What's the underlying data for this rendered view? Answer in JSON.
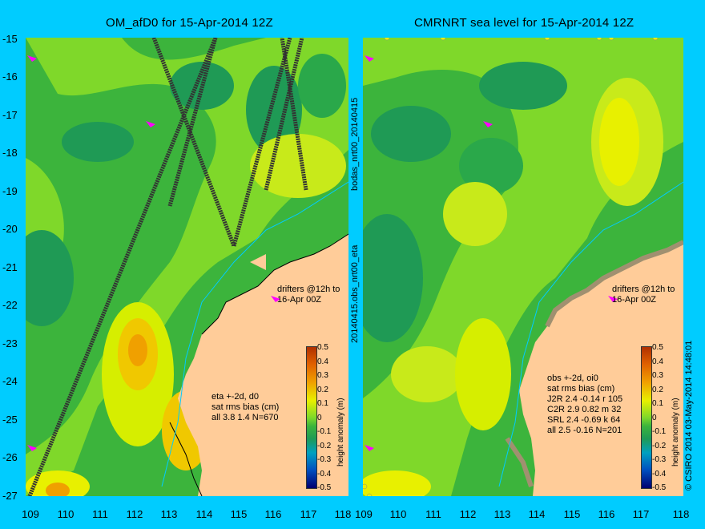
{
  "left_panel": {
    "title": "OM_afD0 for 15-Apr-2014 12Z",
    "stats_lines": [
      "eta +-2d, d0",
      "sat rms bias (cm)",
      "all 3.8 1.4 N=670"
    ],
    "drifters_lines": [
      "drifters @12h to",
      "16-Apr 00Z"
    ]
  },
  "right_panel": {
    "title": "CMRNRT sea level  for 15-Apr-2014 12Z",
    "stats_lines": [
      "obs +-2d, oi0",
      "sat rms bias (cm)",
      "J2R   2.4 -0.14 r 105",
      "C2R   2.9 0.82 m 32",
      "SRL   2.4 -0.69 k 64",
      "all   2.5 -0.16 N=201"
    ],
    "drifters_lines": [
      "drifters @12h to",
      "16-Apr 00Z"
    ]
  },
  "side_labels": {
    "left_upper": "bodas_nrt00_20140415",
    "left_lower": "20140415.obs_nrt00_eta",
    "right": "© CSIRO 2014   03-May-2014 14:48:01"
  },
  "colorbar": {
    "title": "height anomaly (m)",
    "ticks": [
      "0.5",
      "0.4",
      "0.3",
      "0.2",
      "0.1",
      "0",
      "-0.1",
      "-0.2",
      "-0.3",
      "-0.4",
      "-0.5"
    ]
  },
  "y_ticks": [
    "-15",
    "-16",
    "-17",
    "-18",
    "-19",
    "-20",
    "-21",
    "-22",
    "-23",
    "-24",
    "-25",
    "-26",
    "-27"
  ],
  "x_ticks": [
    "109",
    "110",
    "111",
    "112",
    "113",
    "114",
    "115",
    "116",
    "117",
    "118"
  ],
  "colors": {
    "background": "#00ccff",
    "land": "#ffcc99",
    "mid_green": "#3cb43c",
    "light_green": "#7fd82a",
    "dark_green": "#1f9a55",
    "yellow": "#e8f000",
    "orange": "#f0a000",
    "drifter": "#ff00ff"
  }
}
